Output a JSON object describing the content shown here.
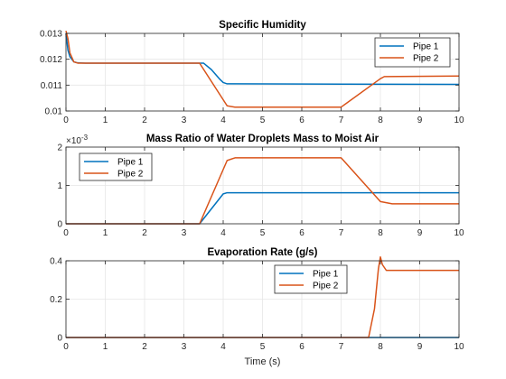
{
  "chart_data": [
    {
      "type": "line",
      "title": "Specific Humidity",
      "xlabel": "",
      "ylabel": "",
      "xlim": [
        0,
        10
      ],
      "ylim": [
        0.01,
        0.013
      ],
      "xticks": [
        "0",
        "1",
        "2",
        "3",
        "4",
        "5",
        "6",
        "7",
        "8",
        "9",
        "10"
      ],
      "yticks": [
        "0.01",
        "0.011",
        "0.012",
        "0.013"
      ],
      "ytick_values": [
        0.01,
        0.011,
        0.012,
        0.013
      ],
      "grid": true,
      "legend_position": "top-right",
      "series": [
        {
          "name": "Pipe 1",
          "color": "#0072BD",
          "x": [
            0,
            0.05,
            0.1,
            0.2,
            0.3,
            0.5,
            3.4,
            3.5,
            3.7,
            3.9,
            4.0,
            4.1,
            10
          ],
          "y": [
            0.013,
            0.01235,
            0.0121,
            0.0119,
            0.01186,
            0.01185,
            0.01185,
            0.01185,
            0.0116,
            0.01125,
            0.0111,
            0.01105,
            0.01103
          ]
        },
        {
          "name": "Pipe 2",
          "color": "#D95319",
          "x": [
            0,
            0.05,
            0.1,
            0.2,
            0.3,
            0.5,
            3.4,
            4.1,
            4.3,
            7.0,
            8.0,
            8.1,
            10
          ],
          "y": [
            0.0131,
            0.0128,
            0.01225,
            0.0119,
            0.01185,
            0.01185,
            0.01185,
            0.0102,
            0.01015,
            0.01015,
            0.01125,
            0.01133,
            0.01135
          ]
        }
      ]
    },
    {
      "type": "line",
      "title": "Mass Ratio of Water Droplets Mass to Moist Air",
      "xlabel": "",
      "ylabel": "",
      "exponent_label": "×10",
      "exponent_power": "-3",
      "xlim": [
        0,
        10
      ],
      "ylim": [
        0,
        0.002
      ],
      "xticks": [
        "0",
        "1",
        "2",
        "3",
        "4",
        "5",
        "6",
        "7",
        "8",
        "9",
        "10"
      ],
      "yticks": [
        "0",
        "1",
        "2"
      ],
      "ytick_values": [
        0,
        0.001,
        0.002
      ],
      "grid": true,
      "legend_position": "top-left",
      "series": [
        {
          "name": "Pipe 1",
          "color": "#0072BD",
          "x": [
            0,
            3.4,
            4.0,
            4.1,
            10
          ],
          "y": [
            0,
            0,
            0.00078,
            0.00081,
            0.00081
          ]
        },
        {
          "name": "Pipe 2",
          "color": "#D95319",
          "x": [
            0,
            3.4,
            4.1,
            4.3,
            7.0,
            8.0,
            8.3,
            10
          ],
          "y": [
            0,
            0,
            0.00165,
            0.00172,
            0.00172,
            0.00058,
            0.00052,
            0.00052
          ]
        }
      ]
    },
    {
      "type": "line",
      "title": "Evaporation Rate (g/s)",
      "xlabel": "Time (s)",
      "ylabel": "",
      "xlim": [
        0,
        10
      ],
      "ylim": [
        0,
        0.4
      ],
      "xticks": [
        "0",
        "1",
        "2",
        "3",
        "4",
        "5",
        "6",
        "7",
        "8",
        "9",
        "10"
      ],
      "yticks": [
        "0",
        "0.2",
        "0.4"
      ],
      "ytick_values": [
        0,
        0.2,
        0.4
      ],
      "grid": true,
      "legend_position": "top-center",
      "series": [
        {
          "name": "Pipe 1",
          "color": "#0072BD",
          "x": [
            0,
            10
          ],
          "y": [
            0,
            0
          ]
        },
        {
          "name": "Pipe 2",
          "color": "#D95319",
          "x": [
            0,
            7.7,
            7.85,
            7.95,
            8.0,
            8.05,
            8.15,
            10
          ],
          "y": [
            0,
            0,
            0.15,
            0.36,
            0.42,
            0.38,
            0.35,
            0.35
          ]
        }
      ]
    }
  ]
}
